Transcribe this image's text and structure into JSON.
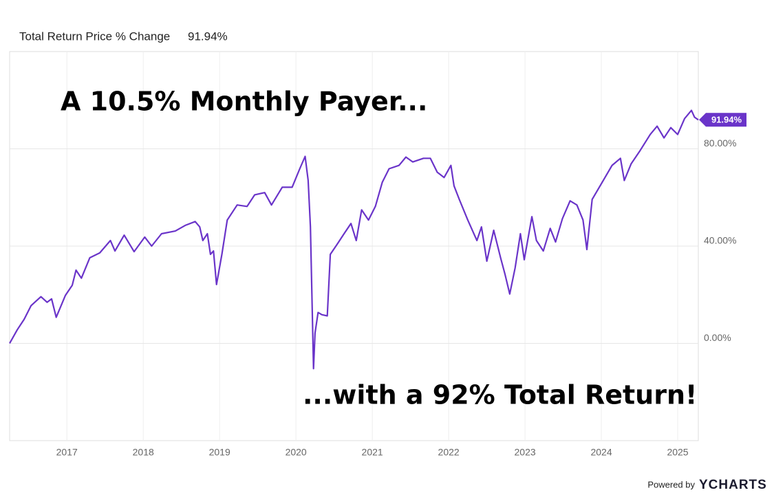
{
  "header": {
    "title": "Total Return Price % Change",
    "value": "91.94%"
  },
  "chart_data": {
    "type": "line",
    "annotations": [
      "A 10.5% Monthly Payer...",
      "...with a 92% Total Return!"
    ],
    "x": [
      2016.25,
      2016.35,
      2016.44,
      2016.53,
      2016.66,
      2016.74,
      2016.8,
      2016.86,
      2016.98,
      2017.07,
      2017.12,
      2017.19,
      2017.3,
      2017.43,
      2017.57,
      2017.63,
      2017.75,
      2017.88,
      2018.02,
      2018.11,
      2018.24,
      2018.42,
      2018.55,
      2018.68,
      2018.74,
      2018.78,
      2018.84,
      2018.88,
      2018.92,
      2018.96,
      2019.03,
      2019.1,
      2019.23,
      2019.36,
      2019.46,
      2019.59,
      2019.68,
      2019.82,
      2019.95,
      2020.05,
      2020.12,
      2020.16,
      2020.19,
      2020.23,
      2020.25,
      2020.29,
      2020.34,
      2020.41,
      2020.45,
      2020.54,
      2020.63,
      2020.72,
      2020.79,
      2020.86,
      2020.95,
      2021.04,
      2021.13,
      2021.22,
      2021.35,
      2021.44,
      2021.53,
      2021.67,
      2021.76,
      2021.85,
      2021.94,
      2022.03,
      2022.07,
      2022.14,
      2022.25,
      2022.37,
      2022.43,
      2022.5,
      2022.59,
      2022.68,
      2022.74,
      2022.8,
      2022.87,
      2022.94,
      2022.99,
      2023.09,
      2023.15,
      2023.24,
      2023.33,
      2023.4,
      2023.49,
      2023.59,
      2023.68,
      2023.76,
      2023.81,
      2023.88,
      2024.01,
      2024.14,
      2024.25,
      2024.3,
      2024.39,
      2024.5,
      2024.64,
      2024.73,
      2024.82,
      2024.91,
      2025.0,
      2025.09,
      2025.18,
      2025.22,
      2025.27
    ],
    "series": [
      {
        "name": "Total Return Price % Change",
        "color": "#6a34c9",
        "values": [
          0,
          5.6,
          9.9,
          15.5,
          19.2,
          16.9,
          18.3,
          10.7,
          19.7,
          23.9,
          30.1,
          26.8,
          35.2,
          37.2,
          42.3,
          38.0,
          44.5,
          37.7,
          43.7,
          40.0,
          45.1,
          46.2,
          48.5,
          50.1,
          47.9,
          42.3,
          45.1,
          36.6,
          38.0,
          24.2,
          36.6,
          50.7,
          56.9,
          56.3,
          61.1,
          62.0,
          56.9,
          64.2,
          64.2,
          71.8,
          76.9,
          67.0,
          47.9,
          -10.4,
          4.2,
          12.7,
          11.8,
          11.3,
          36.6,
          40.8,
          45.1,
          49.3,
          42.3,
          54.9,
          50.7,
          56.3,
          66.2,
          71.8,
          73.2,
          76.6,
          74.6,
          76.1,
          76.1,
          70.4,
          68.2,
          73.2,
          64.8,
          59.2,
          50.7,
          42.3,
          47.9,
          33.8,
          46.5,
          35.2,
          28.2,
          20.3,
          31.0,
          45.1,
          34.4,
          52.1,
          42.3,
          38.0,
          47.3,
          41.7,
          51.3,
          58.6,
          56.9,
          50.7,
          38.6,
          59.2,
          66.2,
          73.2,
          76.1,
          67.0,
          73.8,
          78.9,
          85.9,
          89.3,
          84.5,
          88.7,
          85.9,
          92.4,
          95.8,
          93.0,
          91.94
        ]
      }
    ],
    "xlim": [
      2016.25,
      2025.27
    ],
    "xticks": [
      2017,
      2018,
      2019,
      2020,
      2021,
      2022,
      2023,
      2024,
      2025
    ],
    "ylim": [
      -40,
      120
    ],
    "yticks": [
      {
        "value": 0,
        "label": "0.00%"
      },
      {
        "value": 40,
        "label": "40.00%"
      },
      {
        "value": 80,
        "label": "80.00%"
      }
    ],
    "grid": true
  },
  "footer": {
    "powered": "Powered by",
    "brand": "YCHARTS"
  }
}
